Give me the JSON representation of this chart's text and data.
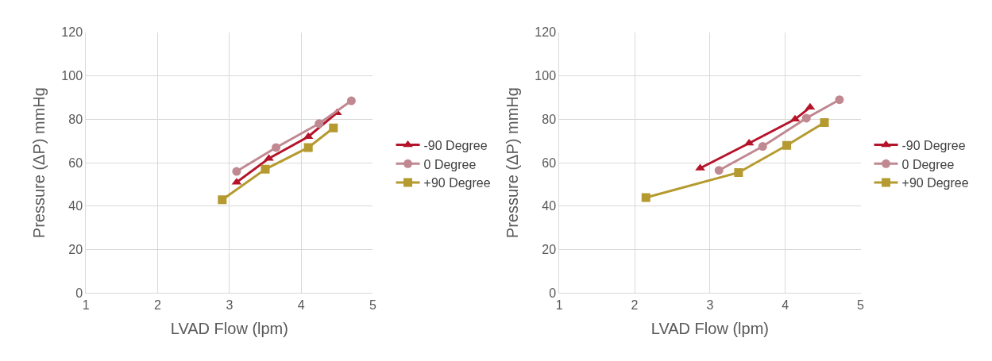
{
  "chart_data": [
    {
      "type": "line",
      "xlabel": "LVAD Flow (lpm)",
      "ylabel": "Pressure (ΔP) mmHg",
      "xlim": [
        1,
        5
      ],
      "xticks": [
        1,
        2,
        3,
        4,
        5
      ],
      "ylim": [
        0,
        120
      ],
      "yticks": [
        0,
        20,
        40,
        60,
        80,
        100,
        120
      ],
      "grid": true,
      "legend": "right",
      "line_style": "solid",
      "series": [
        {
          "name": "-90 Degree",
          "color": "#b5132a",
          "marker": "triangle",
          "x": [
            3.1,
            3.55,
            4.1,
            4.5
          ],
          "values": [
            51,
            62,
            72,
            83
          ]
        },
        {
          "name": "0 Degree",
          "color": "#c08890",
          "marker": "circle",
          "x": [
            3.1,
            3.65,
            4.25,
            4.7
          ],
          "values": [
            56,
            67,
            78,
            88.5
          ]
        },
        {
          "name": "+90 Degree",
          "color": "#b59a30",
          "marker": "square",
          "x": [
            2.9,
            3.5,
            4.1,
            4.45
          ],
          "values": [
            43,
            57,
            67,
            76
          ]
        }
      ]
    },
    {
      "type": "line",
      "xlabel": "LVAD Flow (lpm)",
      "ylabel": "Pressure (ΔP) mmHg",
      "xlim": [
        1,
        5
      ],
      "xticks": [
        1,
        2,
        3,
        4,
        5
      ],
      "ylim": [
        0,
        120
      ],
      "yticks": [
        0,
        20,
        40,
        60,
        80,
        100,
        120
      ],
      "grid": true,
      "legend": "right",
      "line_style": "solid",
      "series": [
        {
          "name": "-90 Degree",
          "color": "#b5132a",
          "marker": "triangle",
          "x": [
            2.87,
            3.52,
            4.13,
            4.33
          ],
          "values": [
            57.5,
            69,
            80,
            85.5
          ]
        },
        {
          "name": "0 Degree",
          "color": "#c08890",
          "marker": "circle",
          "x": [
            3.12,
            3.7,
            4.28,
            4.72
          ],
          "values": [
            56.5,
            67.5,
            80.5,
            89
          ]
        },
        {
          "name": "+90 Degree",
          "color": "#b59a30",
          "marker": "square",
          "x": [
            2.15,
            3.38,
            4.02,
            4.52
          ],
          "values": [
            44,
            55.5,
            68,
            78.5
          ]
        }
      ]
    }
  ]
}
